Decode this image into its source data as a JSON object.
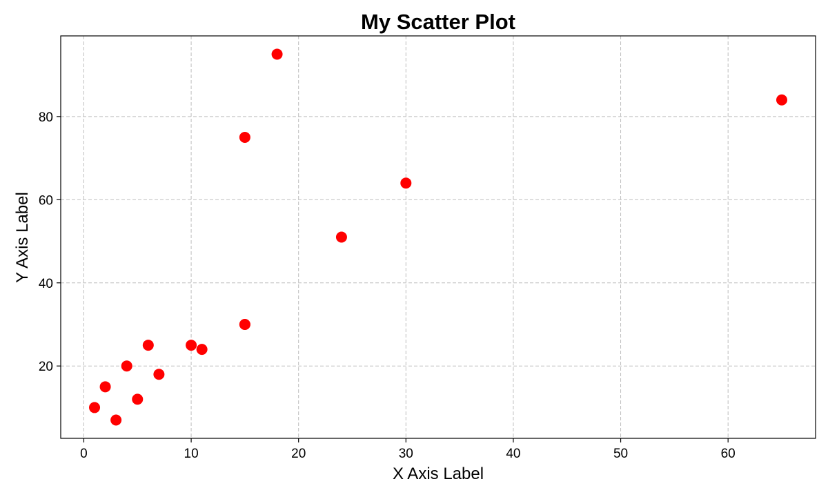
{
  "chart_data": {
    "type": "scatter",
    "title": "My Scatter Plot",
    "xlabel": "X Axis Label",
    "ylabel": "Y Axis Label",
    "xlim": [
      -2.15,
      68.15
    ],
    "ylim": [
      2.6,
      99.4
    ],
    "xticks": [
      0,
      10,
      20,
      30,
      40,
      50,
      60
    ],
    "yticks": [
      20,
      40,
      60,
      80
    ],
    "grid": true,
    "marker_color": "#ff0000",
    "series": [
      {
        "x": [
          1,
          2,
          3,
          4,
          5,
          6,
          7,
          10,
          11,
          15,
          15,
          15,
          18,
          24,
          30,
          65
        ],
        "y": [
          10,
          15,
          7,
          20,
          12,
          25,
          18,
          25,
          24,
          30,
          75,
          30,
          95,
          51,
          64,
          84
        ]
      }
    ]
  }
}
